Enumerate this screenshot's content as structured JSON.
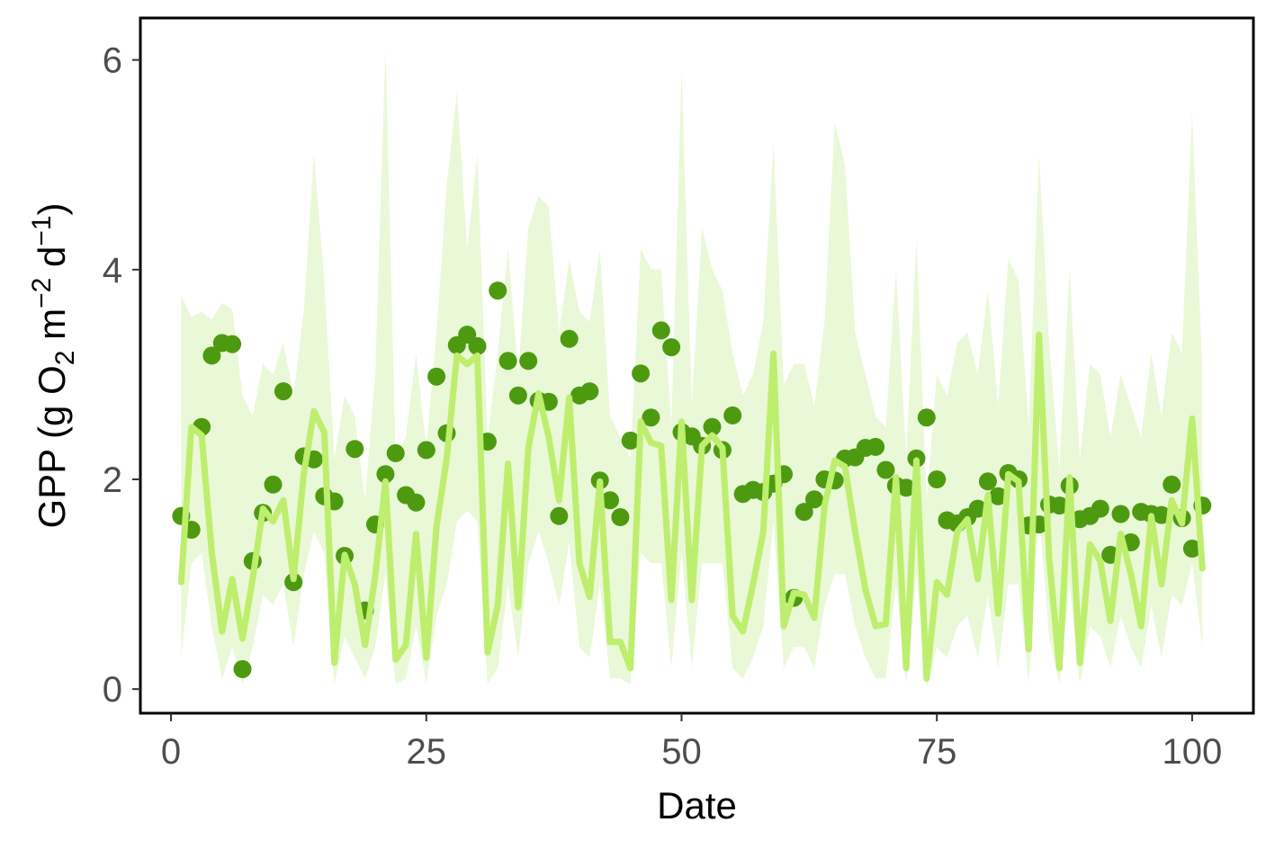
{
  "chart_data": {
    "type": "line",
    "title": "",
    "xlabel": "Date",
    "ylabel": "GPP (g O2 m-2 d-1)",
    "ylabel_parts": {
      "prefix": "GPP (g  O",
      "sub": "2",
      "mid1": " m",
      "sup1": "−2",
      "mid2": " d",
      "sup2": "−1",
      "suffix": ")"
    },
    "xlim": [
      -3,
      106
    ],
    "ylim": [
      -0.23,
      6.4
    ],
    "xticks": [
      0,
      25,
      50,
      75,
      100
    ],
    "yticks": [
      0,
      2,
      4,
      6
    ],
    "xtick_labels": [
      "0",
      "25",
      "50",
      "75",
      "100"
    ],
    "ytick_labels": [
      "0",
      "2",
      "4",
      "6"
    ],
    "grid": false,
    "legend": "none",
    "colors": {
      "points": "#4d9a10",
      "line": "#bdee6e",
      "band": "#e9f8d6",
      "axis": "#000000"
    },
    "series": [
      {
        "kind": "observed_points",
        "x": [
          1,
          2,
          3,
          4,
          5,
          6,
          7,
          8,
          9,
          10,
          11,
          12,
          13,
          14,
          15,
          16,
          17,
          18,
          19,
          20,
          21,
          22,
          23,
          24,
          25,
          26,
          27,
          28,
          29,
          30,
          31,
          32,
          33,
          34,
          35,
          36,
          37,
          38,
          39,
          40,
          41,
          42,
          43,
          44,
          45,
          46,
          47,
          48,
          49,
          50,
          51,
          52,
          53,
          54,
          55,
          56,
          57,
          58,
          59,
          60,
          61,
          62,
          63,
          64,
          65,
          66,
          67,
          68,
          69,
          70,
          71,
          72,
          73,
          74,
          75,
          76,
          77,
          78,
          79,
          80,
          81,
          82,
          83,
          84,
          85,
          86,
          87,
          88,
          89,
          90,
          91,
          92,
          93,
          94,
          95,
          96,
          97,
          98,
          99,
          100,
          101
        ],
        "y": [
          1.65,
          1.52,
          2.5,
          3.18,
          3.3,
          3.29,
          0.19,
          1.22,
          1.68,
          1.95,
          2.84,
          1.02,
          2.22,
          2.19,
          1.84,
          1.79,
          1.27,
          2.29,
          0.75,
          1.57,
          2.05,
          2.25,
          1.85,
          1.78,
          2.28,
          2.98,
          2.44,
          3.28,
          3.38,
          3.27,
          2.36,
          3.8,
          3.13,
          2.8,
          3.13,
          2.75,
          2.74,
          1.65,
          3.34,
          2.8,
          2.84,
          1.99,
          1.8,
          1.64,
          2.37,
          3.01,
          2.59,
          3.42,
          3.26,
          2.45,
          2.41,
          2.32,
          2.5,
          2.28,
          2.61,
          1.86,
          1.9,
          1.88,
          1.96,
          2.05,
          0.87,
          1.69,
          1.81,
          2.0,
          1.99,
          2.2,
          2.21,
          2.3,
          2.31,
          2.09,
          1.94,
          1.92,
          2.2,
          2.59,
          2.0,
          1.61,
          1.58,
          1.64,
          1.72,
          1.98,
          1.84,
          2.06,
          2.0,
          1.56,
          1.57,
          1.76,
          1.75,
          1.94,
          1.62,
          1.65,
          1.72,
          1.28,
          1.67,
          1.4,
          1.69,
          1.67,
          1.66,
          1.95,
          1.63,
          1.34,
          1.75
        ]
      },
      {
        "kind": "model_line",
        "x": [
          1,
          2,
          3,
          4,
          5,
          6,
          7,
          8,
          9,
          10,
          11,
          12,
          13,
          14,
          15,
          16,
          17,
          18,
          19,
          20,
          21,
          22,
          23,
          24,
          25,
          26,
          27,
          28,
          29,
          30,
          31,
          32,
          33,
          34,
          35,
          36,
          37,
          38,
          39,
          40,
          41,
          42,
          43,
          44,
          45,
          46,
          47,
          48,
          49,
          50,
          51,
          52,
          53,
          54,
          55,
          56,
          57,
          58,
          59,
          60,
          61,
          62,
          63,
          64,
          65,
          66,
          67,
          68,
          69,
          70,
          71,
          72,
          73,
          74,
          75,
          76,
          77,
          78,
          79,
          80,
          81,
          82,
          83,
          84,
          85,
          86,
          87,
          88,
          89,
          90,
          91,
          92,
          93,
          94,
          95,
          96,
          97,
          98,
          99,
          100,
          101
        ],
        "y": [
          1.02,
          2.5,
          2.42,
          1.3,
          0.55,
          1.05,
          0.48,
          1.05,
          1.72,
          1.6,
          1.8,
          1.05,
          2.05,
          2.65,
          2.45,
          0.25,
          1.28,
          1.0,
          0.42,
          1.08,
          1.98,
          0.28,
          0.42,
          1.48,
          0.3,
          1.55,
          2.2,
          3.18,
          3.1,
          3.18,
          0.35,
          0.8,
          2.15,
          0.78,
          2.3,
          2.82,
          2.4,
          1.8,
          2.78,
          1.2,
          0.88,
          1.98,
          0.45,
          0.45,
          0.2,
          2.55,
          2.35,
          2.32,
          0.85,
          2.55,
          0.85,
          2.32,
          2.42,
          2.3,
          0.7,
          0.55,
          1.0,
          1.5,
          3.2,
          0.6,
          0.92,
          0.9,
          0.68,
          1.75,
          2.18,
          2.12,
          1.5,
          0.95,
          0.6,
          0.62,
          2.02,
          0.2,
          2.18,
          0.1,
          1.02,
          0.9,
          1.5,
          1.62,
          1.05,
          1.85,
          0.72,
          2.05,
          1.98,
          0.38,
          3.38,
          1.25,
          0.2,
          2.02,
          0.25,
          1.38,
          1.22,
          0.65,
          1.48,
          1.1,
          0.6,
          1.65,
          1.0,
          1.8,
          1.58,
          2.58,
          1.15
        ]
      },
      {
        "kind": "interval_band",
        "x": [
          1,
          2,
          3,
          4,
          5,
          6,
          7,
          8,
          9,
          10,
          11,
          12,
          13,
          14,
          15,
          16,
          17,
          18,
          19,
          20,
          21,
          22,
          23,
          24,
          25,
          26,
          27,
          28,
          29,
          30,
          31,
          32,
          33,
          34,
          35,
          36,
          37,
          38,
          39,
          40,
          41,
          42,
          43,
          44,
          45,
          46,
          47,
          48,
          49,
          50,
          51,
          52,
          53,
          54,
          55,
          56,
          57,
          58,
          59,
          60,
          61,
          62,
          63,
          64,
          65,
          66,
          67,
          68,
          69,
          70,
          71,
          72,
          73,
          74,
          75,
          76,
          77,
          78,
          79,
          80,
          81,
          82,
          83,
          84,
          85,
          86,
          87,
          88,
          89,
          90,
          91,
          92,
          93,
          94,
          95,
          96,
          97,
          98,
          99,
          100,
          101
        ],
        "lower": [
          0.3,
          1.2,
          1.3,
          0.6,
          0.1,
          0.4,
          0.05,
          0.4,
          0.9,
          0.8,
          1.0,
          0.4,
          1.1,
          1.5,
          1.3,
          0.05,
          0.5,
          0.3,
          0.1,
          0.4,
          1.1,
          0.05,
          0.1,
          0.6,
          0.05,
          0.7,
          1.0,
          1.6,
          1.7,
          1.6,
          0.05,
          0.2,
          1.0,
          0.3,
          1.2,
          1.5,
          1.2,
          0.8,
          1.4,
          0.4,
          0.3,
          1.0,
          0.1,
          0.1,
          0.05,
          1.3,
          1.2,
          1.2,
          0.2,
          1.3,
          0.2,
          1.2,
          1.2,
          1.2,
          0.2,
          0.1,
          0.3,
          0.6,
          1.6,
          0.2,
          0.4,
          0.4,
          0.2,
          0.8,
          1.1,
          1.1,
          0.6,
          0.3,
          0.1,
          0.1,
          1.0,
          0.05,
          1.1,
          0.02,
          0.4,
          0.3,
          0.6,
          0.7,
          0.3,
          0.9,
          0.2,
          1.0,
          1.0,
          0.05,
          1.7,
          0.5,
          0.05,
          1.0,
          0.05,
          0.6,
          0.5,
          0.2,
          0.7,
          0.4,
          0.2,
          0.8,
          0.3,
          0.9,
          0.8,
          1.2,
          0.4
        ],
        "upper": [
          3.75,
          3.55,
          3.6,
          3.52,
          3.68,
          3.62,
          2.8,
          2.6,
          3.1,
          3.0,
          3.3,
          2.8,
          3.6,
          5.1,
          3.9,
          2.2,
          2.8,
          2.6,
          1.8,
          3.0,
          6.1,
          2.2,
          2.4,
          3.2,
          2.3,
          3.4,
          4.8,
          5.7,
          4.2,
          5.1,
          2.4,
          3.2,
          4.2,
          3.0,
          4.4,
          4.7,
          4.6,
          3.4,
          4.1,
          3.6,
          3.5,
          4.2,
          2.6,
          2.4,
          2.2,
          4.2,
          4.0,
          4.0,
          2.5,
          5.9,
          2.7,
          4.4,
          4.0,
          3.8,
          3.2,
          2.8,
          3.0,
          3.5,
          5.2,
          2.9,
          3.1,
          3.1,
          2.7,
          3.5,
          5.4,
          5.0,
          3.4,
          3.0,
          2.6,
          2.5,
          4.0,
          2.2,
          4.3,
          1.8,
          3.0,
          2.8,
          3.3,
          3.4,
          3.0,
          3.8,
          2.7,
          4.1,
          3.9,
          2.5,
          5.1,
          3.3,
          2.1,
          4.0,
          2.2,
          3.1,
          3.0,
          2.4,
          3.0,
          2.7,
          2.4,
          3.2,
          2.6,
          3.4,
          3.2,
          5.5,
          3.0
        ]
      }
    ]
  }
}
